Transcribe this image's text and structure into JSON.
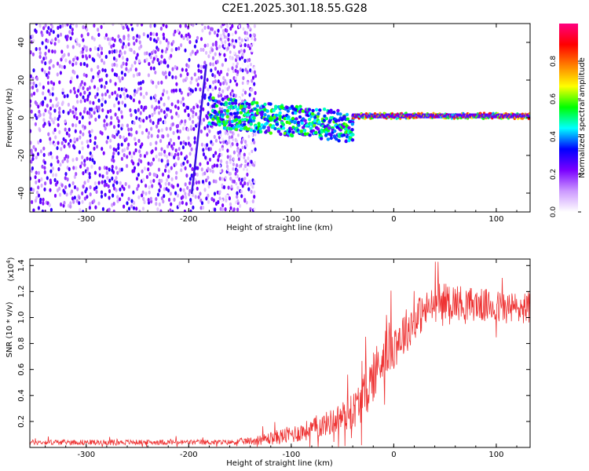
{
  "figure_title": "C2E1.2025.301.18.55.G28",
  "chart_data": [
    {
      "type": "heatmap",
      "title": "C2E1.2025.301.18.55.G28",
      "xlabel": "Height of straight line (km)",
      "ylabel": "Frequency (Hz)",
      "xlim": [
        -355,
        133
      ],
      "ylim": [
        -50,
        50
      ],
      "x_ticks": [
        -300,
        -200,
        -100,
        0,
        100
      ],
      "x_tick_labels": [
        "-300",
        "-200",
        "-100",
        "0",
        "100"
      ],
      "y_ticks": [
        -40,
        -20,
        0,
        20,
        40
      ],
      "y_tick_labels": [
        "-40",
        "-20",
        "0",
        "20",
        "40"
      ],
      "colorbar": {
        "label": "Normalized spectral amplitude",
        "range": [
          0,
          1
        ],
        "ticks": [
          0.0,
          0.2,
          0.4,
          0.6,
          0.8
        ],
        "tick_labels": [
          "0.0",
          "0.2",
          "0.4",
          "0.6",
          "0.8"
        ],
        "colormap": [
          "#ffffff",
          "#cc99ff",
          "#7a00ff",
          "#0000ff",
          "#00ffff",
          "#00ff00",
          "#ffff00",
          "#ff8000",
          "#ff0000",
          "#ff0080"
        ]
      },
      "regions": [
        {
          "description_key": "noise",
          "x_range": [
            -355,
            -135
          ],
          "freq_range": [
            -50,
            50
          ],
          "amplitude_range": [
            0.05,
            0.3
          ]
        },
        {
          "description_key": "faint-noise",
          "x_range": [
            -170,
            -135
          ],
          "freq_range": [
            -50,
            50
          ],
          "amplitude_range": [
            0.0,
            0.1
          ]
        },
        {
          "description_key": "broad-signal",
          "x_range": [
            -180,
            -40
          ],
          "freq_center_start": 3,
          "freq_center_end": -5,
          "freq_halfwidth": 8,
          "amplitude_range": [
            0.2,
            0.6
          ]
        },
        {
          "description_key": "narrow-signal",
          "x_range": [
            -40,
            133
          ],
          "freq_center": 1,
          "freq_halfwidth": 3,
          "amplitude_range": [
            0.4,
            0.95
          ]
        }
      ],
      "streak": {
        "x": [
          -197,
          -183
        ],
        "freq": [
          -40,
          28
        ]
      }
    },
    {
      "type": "line",
      "xlabel": "Height of straight line (km)",
      "ylabel": "SNR (10 * v/v)",
      "y_multiplier_label": "(x10",
      "y_multiplier_exponent": "4",
      "y_multiplier_close": ")",
      "xlim": [
        -355,
        133
      ],
      "ylim": [
        0.0,
        1.45
      ],
      "x_ticks": [
        -300,
        -200,
        -100,
        0,
        100
      ],
      "x_tick_labels": [
        "-300",
        "-200",
        "-100",
        "0",
        "100"
      ],
      "y_ticks": [
        0.2,
        0.4,
        0.6,
        0.8,
        1.0,
        1.2,
        1.4
      ],
      "y_tick_labels": [
        "0.2",
        "0.4",
        "0.6",
        "0.8",
        "1.0",
        "1.2",
        "1.4"
      ],
      "series": [
        {
          "name": "SNR",
          "color": "#ee3333",
          "envelope_x": [
            -355,
            -160,
            -140,
            -120,
            -100,
            -80,
            -60,
            -40,
            -30,
            -20,
            -10,
            0,
            10,
            20,
            30,
            40,
            50,
            60,
            80,
            100,
            120,
            133
          ],
          "envelope_y": [
            0.04,
            0.04,
            0.05,
            0.07,
            0.1,
            0.14,
            0.2,
            0.28,
            0.38,
            0.55,
            0.72,
            0.8,
            0.88,
            0.98,
            1.05,
            1.1,
            1.13,
            1.12,
            1.1,
            1.08,
            1.07,
            1.08
          ],
          "noise_y": [
            0.02,
            0.02,
            0.03,
            0.05,
            0.07,
            0.08,
            0.1,
            0.14,
            0.18,
            0.2,
            0.2,
            0.2,
            0.18,
            0.16,
            0.15,
            0.14,
            0.14,
            0.14,
            0.13,
            0.13,
            0.13,
            0.13
          ]
        }
      ]
    }
  ]
}
